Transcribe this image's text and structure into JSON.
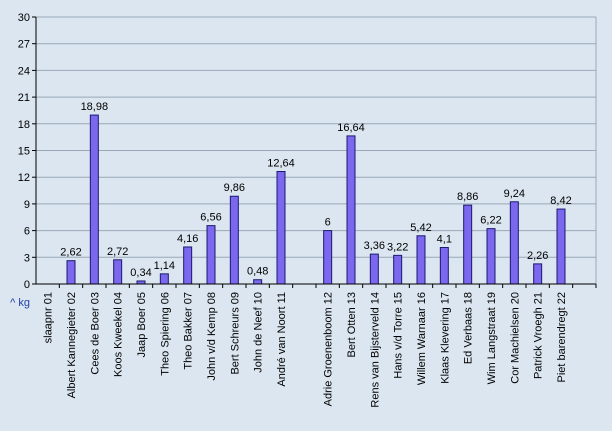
{
  "chart_data": {
    "type": "bar",
    "ylabel": "^ kg",
    "ylim": [
      0,
      30
    ],
    "yticks": [
      0,
      3,
      6,
      9,
      12,
      15,
      18,
      21,
      24,
      27,
      30
    ],
    "grid": true,
    "colors": {
      "bar": "#7b68ee",
      "bar_stroke": "#1a1a6e",
      "plot_bg": "#dbe6f0",
      "grid": "#9aa8b8"
    },
    "categories": [
      "slaapnr 01",
      "Albert Kannegieter 02",
      "Cees de Boer 03",
      "Koos Kweekel 04",
      "Jaap Boer 05",
      "Theo Spiering 06",
      "Theo Bakker 07",
      "John v/d Kemp 08",
      "Bert Schreurs 09",
      "John de Neef 10",
      "André van Noort 11",
      "",
      "Adrie Groenenboom 12",
      "Bert Otten 13",
      "Rens van Bijsterveld 14",
      "Hans v/d Torre 15",
      "Willem Warnaar 16",
      "Klaas Klevering 17",
      "Ed Verbaas 18",
      "Wim Langstraat 19",
      "Cor Machielsen 20",
      "Patrick Vroegh 21",
      "Piet barendregt 22",
      ""
    ],
    "values": [
      null,
      2.62,
      18.98,
      2.72,
      0.34,
      1.14,
      4.16,
      6.56,
      9.86,
      0.48,
      12.64,
      null,
      6,
      16.64,
      3.36,
      3.22,
      5.42,
      4.1,
      8.86,
      6.22,
      9.24,
      2.26,
      8.42,
      null
    ],
    "data_labels": [
      "",
      "2,62",
      "18,98",
      "2,72",
      "0,34",
      "1,14",
      "4,16",
      "6,56",
      "9,86",
      "0,48",
      "12,64",
      "",
      "6",
      "16,64",
      "3,36",
      "3,22",
      "5,42",
      "4,1",
      "8,86",
      "6,22",
      "9,24",
      "2,26",
      "8,42",
      ""
    ]
  }
}
